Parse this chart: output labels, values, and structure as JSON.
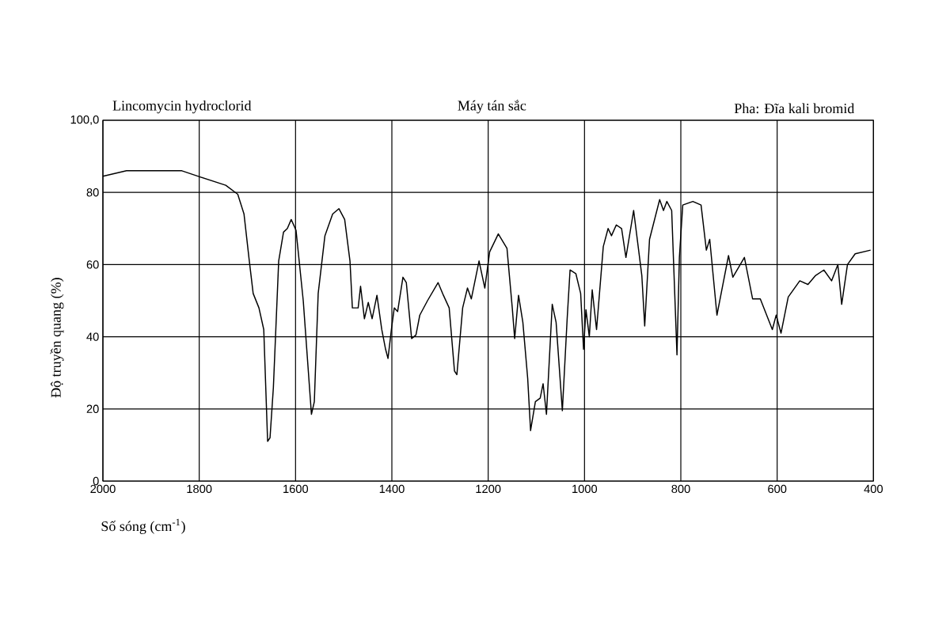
{
  "chart_data": {
    "type": "line",
    "title": "Lincomycin hydroclorid",
    "annotations": [
      "Máy tán sắc",
      "Pha: Đĩa kali bromid"
    ],
    "xlabel": "Số sóng (cm$^{-1}$)",
    "ylabel": "Độ truyền quang (%)",
    "xlim": [
      2000,
      400
    ],
    "ylim": [
      0,
      100
    ],
    "xticks": [
      2000,
      1800,
      1600,
      1400,
      1200,
      1000,
      800,
      600,
      400
    ],
    "yticks": [
      0,
      20,
      40,
      60,
      80,
      {
        "value": 100,
        "label": "100,0"
      }
    ],
    "grid": true,
    "color": "#000000",
    "x": [
      2000,
      1951,
      1836,
      1803,
      1745,
      1720,
      1707,
      1696,
      1688,
      1676,
      1666,
      1658,
      1653,
      1646,
      1635,
      1625,
      1617,
      1609,
      1599,
      1584,
      1567,
      1561,
      1553,
      1539,
      1523,
      1510,
      1498,
      1487,
      1482,
      1470,
      1465,
      1457,
      1449,
      1441,
      1431,
      1421,
      1413,
      1408,
      1401,
      1395,
      1388,
      1377,
      1370,
      1359,
      1350,
      1342,
      1326,
      1304,
      1293,
      1281,
      1270,
      1265,
      1253,
      1243,
      1235,
      1219,
      1207,
      1197,
      1179,
      1161,
      1150,
      1145,
      1137,
      1128,
      1118,
      1112,
      1102,
      1092,
      1086,
      1079,
      1067,
      1059,
      1046,
      1036,
      1030,
      1018,
      1008,
      1002,
      997,
      990,
      984,
      975,
      961,
      951,
      944,
      934,
      923,
      914,
      898,
      881,
      875,
      865,
      844,
      836,
      829,
      819,
      808,
      803,
      796,
      775,
      758,
      747,
      740,
      725,
      717,
      701,
      692,
      668,
      651,
      635,
      610,
      602,
      592,
      577,
      553,
      536,
      520,
      503,
      487,
      474,
      466,
      454,
      438,
      406
    ],
    "values": [
      84.5,
      86,
      86,
      84.5,
      82,
      79.5,
      74,
      61,
      52,
      48,
      42,
      11,
      12,
      26,
      61,
      69,
      70,
      72.5,
      69.5,
      50,
      18.5,
      22,
      52,
      68,
      74,
      75.5,
      72.5,
      61,
      48,
      48,
      54,
      45,
      49.5,
      45,
      51.5,
      42,
      36.5,
      34,
      42,
      48,
      47,
      56.5,
      55,
      39.5,
      40.5,
      46,
      50,
      55,
      51.5,
      48,
      30.5,
      29.5,
      48,
      53.5,
      50.5,
      61,
      53.5,
      63.5,
      68.5,
      64.5,
      48,
      39.5,
      51.5,
      44,
      28.5,
      14,
      22,
      23,
      27,
      18.5,
      49,
      44,
      19.5,
      45,
      58.5,
      57.5,
      52,
      36.5,
      47.5,
      40,
      53,
      42,
      65,
      70,
      68,
      71,
      70,
      62,
      75,
      57,
      43,
      67,
      78,
      75,
      77.5,
      75,
      35,
      62,
      76.5,
      77.5,
      76.5,
      64,
      67,
      46,
      51.5,
      62.5,
      56.5,
      62,
      50.5,
      50.5,
      42,
      46,
      41,
      51,
      55.5,
      54.5,
      57,
      58.5,
      55.5,
      60,
      49,
      60,
      63,
      64
    ]
  }
}
